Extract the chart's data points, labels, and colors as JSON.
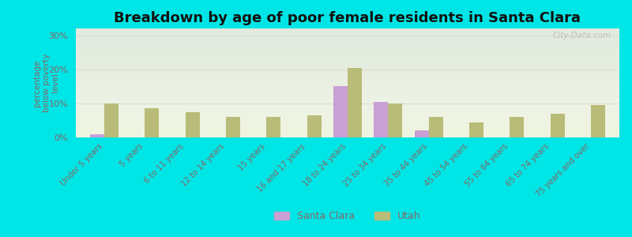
{
  "title": "Breakdown by age of poor female residents in Santa Clara",
  "categories": [
    "Under 5 years",
    "5 years",
    "6 to 11 years",
    "12 to 14 years",
    "15 years",
    "16 and 17 years",
    "18 to 24 years",
    "25 to 34 years",
    "35 to 44 years",
    "45 to 54 years",
    "55 to 64 years",
    "65 to 74 years",
    "75 years and over"
  ],
  "santa_clara": [
    1.0,
    0,
    0,
    0,
    0,
    0,
    15.0,
    10.5,
    2.0,
    0,
    0,
    0,
    0
  ],
  "utah": [
    10.0,
    8.5,
    7.5,
    6.0,
    6.0,
    6.5,
    20.5,
    10.0,
    6.0,
    4.5,
    6.0,
    7.0,
    9.5
  ],
  "santa_clara_color": "#c8a0d4",
  "utah_color": "#b8bc78",
  "outer_bg": "#00e5e5",
  "plot_bg_top": "#e8ede0",
  "plot_bg_bottom": "#f0f4e0",
  "ylabel": "percentage\nbelow poverty\nlevel",
  "ylim": [
    0,
    32
  ],
  "yticks": [
    0,
    10,
    20,
    30
  ],
  "ytick_labels": [
    "0%",
    "10%",
    "20%",
    "30%"
  ],
  "bar_width": 0.35,
  "title_fontsize": 13,
  "axis_color": "#886666",
  "tick_color": "#886666",
  "grid_color": "#ddddcc",
  "watermark": "City-Data.com"
}
